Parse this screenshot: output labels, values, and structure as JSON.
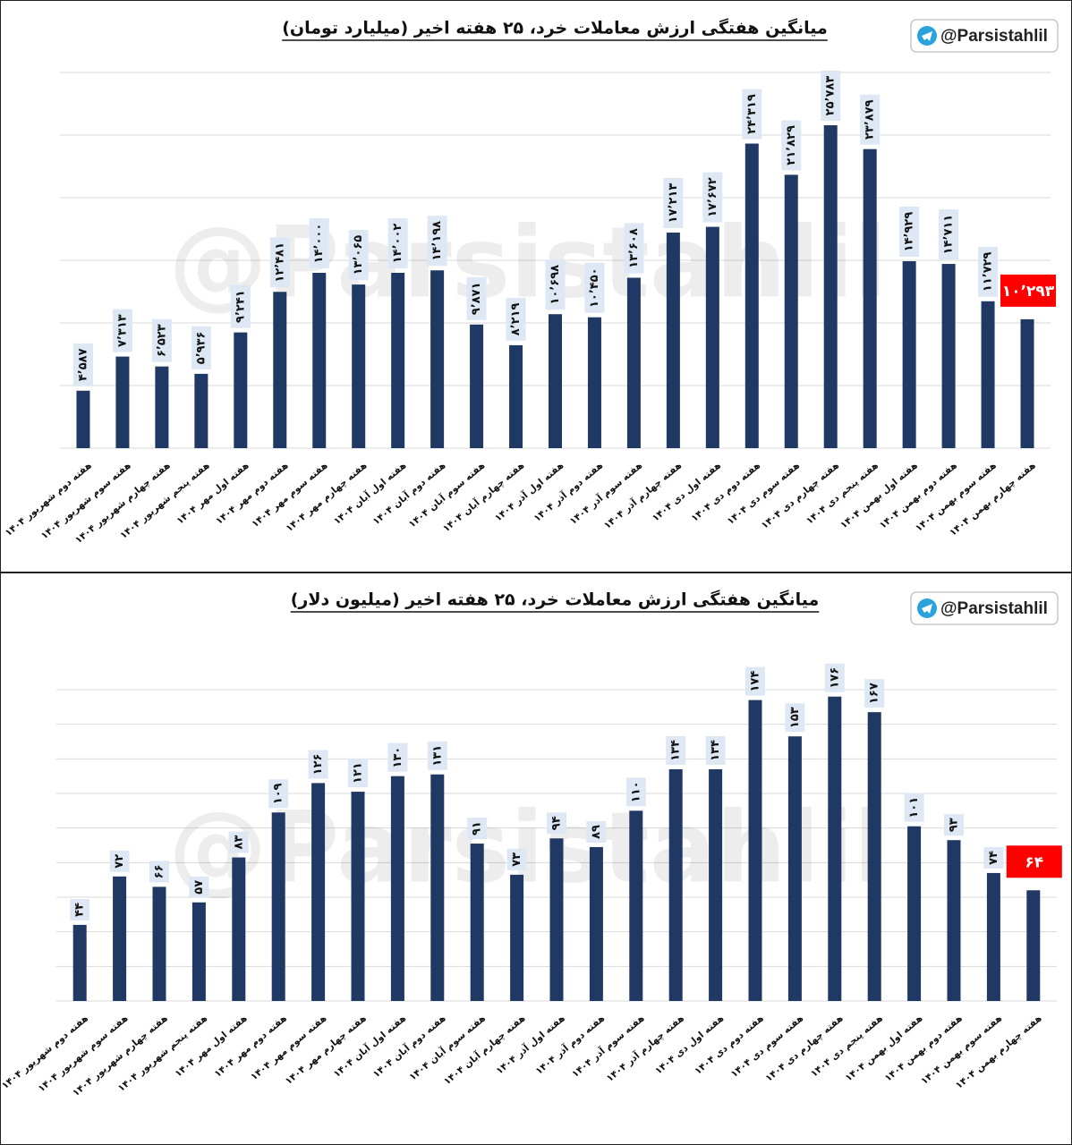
{
  "chart_data": [
    {
      "type": "bar",
      "title": "میانگین هفتگی ارزش معاملات خرد، ۲۵ هفته اخیر (میلیارد تومان)",
      "brand": "@Parsistahlil",
      "watermark": "@Parsistahlil",
      "categories": [
        "هفته دوم شهریور ۱۴۰۴",
        "هفته سوم شهریور ۱۴۰۴",
        "هفته چهارم شهریور ۱۴۰۴",
        "هفته پنجم شهریور ۱۴۰۴",
        "هفته اول مهر ۱۴۰۴",
        "هفته دوم مهر ۱۴۰۴",
        "هفته سوم مهر ۱۴۰۴",
        "هفته چهارم مهر ۱۴۰۴",
        "هفته اول آبان ۱۴۰۴",
        "هفته دوم آبان ۱۴۰۴",
        "هفته سوم آبان ۱۴۰۴",
        "هفته چهارم آبان ۱۴۰۴",
        "هفته اول آذر ۱۴۰۴",
        "هفته دوم آذر ۱۴۰۴",
        "هفته سوم آذر ۱۴۰۴",
        "هفته چهارم آذر ۱۴۰۴",
        "هفته اول دی ۱۴۰۴",
        "هفته دوم دی ۱۴۰۴",
        "هفته سوم دی ۱۴۰۴",
        "هفته چهارم دی ۱۴۰۴",
        "هفته پنجم دی ۱۴۰۴",
        "هفته اول بهمن ۱۴۰۴",
        "هفته دوم بهمن ۱۴۰۴",
        "هفته سوم بهمن ۱۴۰۴",
        "هفته چهارم بهمن ۱۴۰۴"
      ],
      "values": [
        4587,
        7313,
        6523,
        5936,
        9241,
        12481,
        14000,
        13065,
        14002,
        14198,
        9871,
        8219,
        10698,
        10450,
        13608,
        17213,
        17672,
        24319,
        21829,
        25783,
        23879,
        14929,
        14711,
        11729,
        10293
      ],
      "value_labels": [
        "۴٬۵۸۷",
        "۷٬۳۱۳",
        "۶٬۵۲۳",
        "۵٬۹۳۶",
        "۹٬۲۴۱",
        "۱۲٬۴۸۱",
        "۱۴٬۰۰۰",
        "۱۳٬۰۶۵",
        "۱۴٬۰۰۲",
        "۱۴٬۱۹۸",
        "۹٬۸۷۱",
        "۸٬۲۱۹",
        "۱۰٬۶۹۸",
        "۱۰٬۴۵۰",
        "۱۳٬۶۰۸",
        "۱۷٬۲۱۳",
        "۱۷٬۶۷۲",
        "۲۴٬۳۱۹",
        "۲۱٬۸۲۹",
        "۲۵٬۷۸۳",
        "۲۳٬۸۷۹",
        "۱۴٬۹۲۹",
        "۱۴٬۷۱۱",
        "۱۱٬۷۲۹",
        "۱۰٬۲۹۳"
      ],
      "color": "#1f3864",
      "label_colors": [
        "#dde8f4",
        "#dde8f4",
        "#dde8f4",
        "#dde8f4",
        "#dde8f4",
        "#dde8f4",
        "#dde8f4",
        "#dde8f4",
        "#dde8f4",
        "#dde8f4",
        "#dde8f4",
        "#dde8f4",
        "#dde8f4",
        "#dde8f4",
        "#dde8f4",
        "#dde8f4",
        "#dde8f4",
        "#dde8f4",
        "#dde8f4",
        "#dde8f4",
        "#dde8f4",
        "#dde8f4",
        "#dde8f4",
        "#dde8f4",
        "#ff0000"
      ],
      "ylim": [
        0,
        30000
      ],
      "yticks": [
        0,
        5000,
        10000,
        15000,
        20000,
        25000,
        30000
      ],
      "grid": true
    },
    {
      "type": "bar",
      "title": "میانگین هفتگی ارزش معاملات خرد، ۲۵ هفته اخیر (میلیون دلار)",
      "brand": "@Parsistahlil",
      "watermark": "@Parsistahlil",
      "categories": [
        "هفته دوم شهریور ۱۴۰۴",
        "هفته سوم شهریور ۱۴۰۴",
        "هفته چهارم شهریور ۱۴۰۴",
        "هفته پنجم شهریور ۱۴۰۴",
        "هفته اول مهر ۱۴۰۴",
        "هفته دوم مهر ۱۴۰۴",
        "هفته سوم مهر ۱۴۰۴",
        "هفته چهارم مهر ۱۴۰۴",
        "هفته اول آبان ۱۴۰۴",
        "هفته دوم آبان ۱۴۰۴",
        "هفته سوم آبان ۱۴۰۴",
        "هفته چهارم آبان ۱۴۰۴",
        "هفته اول آذر ۱۴۰۴",
        "هفته دوم آذر ۱۴۰۴",
        "هفته سوم آذر ۱۴۰۴",
        "هفته چهارم آذر ۱۴۰۴",
        "هفته اول دی ۱۴۰۴",
        "هفته دوم دی ۱۴۰۴",
        "هفته سوم دی ۱۴۰۴",
        "هفته چهارم دی ۱۴۰۴",
        "هفته پنجم دی ۱۴۰۴",
        "هفته اول بهمن ۱۴۰۴",
        "هفته دوم بهمن ۱۴۰۴",
        "هفته سوم بهمن ۱۴۰۴",
        "هفته چهارم بهمن ۱۴۰۴"
      ],
      "values": [
        44,
        72,
        66,
        57,
        83,
        109,
        126,
        121,
        130,
        131,
        91,
        73,
        94,
        89,
        110,
        134,
        134,
        174,
        153,
        176,
        167,
        101,
        93,
        74,
        64
      ],
      "value_labels": [
        "۴۴",
        "۷۲",
        "۶۶",
        "۵۷",
        "۸۳",
        "۱۰۹",
        "۱۲۶",
        "۱۲۱",
        "۱۳۰",
        "۱۳۱",
        "۹۱",
        "۷۳",
        "۹۴",
        "۸۹",
        "۱۱۰",
        "۱۳۴",
        "۱۳۴",
        "۱۷۴",
        "۱۵۳",
        "۱۷۶",
        "۱۶۷",
        "۱۰۱",
        "۹۳",
        "۷۴",
        "۶۴"
      ],
      "color": "#1f3864",
      "label_colors": [
        "#dde8f4",
        "#dde8f4",
        "#dde8f4",
        "#dde8f4",
        "#dde8f4",
        "#dde8f4",
        "#dde8f4",
        "#dde8f4",
        "#dde8f4",
        "#dde8f4",
        "#dde8f4",
        "#dde8f4",
        "#dde8f4",
        "#dde8f4",
        "#dde8f4",
        "#dde8f4",
        "#dde8f4",
        "#dde8f4",
        "#dde8f4",
        "#dde8f4",
        "#dde8f4",
        "#dde8f4",
        "#dde8f4",
        "#dde8f4",
        "#ff0000"
      ],
      "ylim": [
        0,
        180
      ],
      "yticks": [
        0,
        20,
        40,
        60,
        80,
        100,
        120,
        140,
        160,
        180
      ],
      "grid": true
    }
  ]
}
